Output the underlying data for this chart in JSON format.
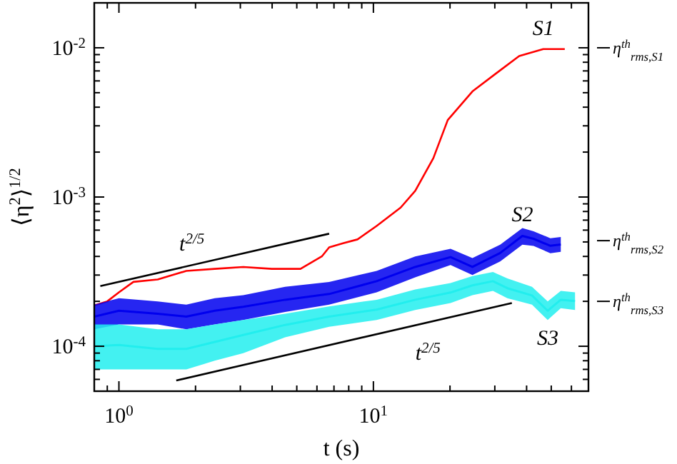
{
  "chart_data": {
    "type": "line",
    "xlabel": "t (s)",
    "ylabel": "⟨η$^{2}$⟩$^{1/2}$",
    "log": "xy",
    "grid": false,
    "marker": "none",
    "line_style": "solid",
    "xlim": [
      0.8,
      70
    ],
    "ylim": [
      5e-05,
      0.02
    ],
    "xticks": [
      {
        "value": 0.8,
        "label": null
      },
      {
        "value": 0.9,
        "label": null
      },
      {
        "value": 1,
        "label": "10$^{0}$"
      },
      {
        "value": 2,
        "label": null
      },
      {
        "value": 3,
        "label": null
      },
      {
        "value": 4,
        "label": null
      },
      {
        "value": 5,
        "label": null
      },
      {
        "value": 6,
        "label": null
      },
      {
        "value": 7,
        "label": null
      },
      {
        "value": 8,
        "label": null
      },
      {
        "value": 9,
        "label": null
      },
      {
        "value": 10,
        "label": "10$^{1}$"
      },
      {
        "value": 20,
        "label": null
      },
      {
        "value": 30,
        "label": null
      },
      {
        "value": 40,
        "label": null
      },
      {
        "value": 50,
        "label": null
      },
      {
        "value": 60,
        "label": null
      },
      {
        "value": 70,
        "label": null
      }
    ],
    "yticks": [
      {
        "value": 6e-05,
        "label": null
      },
      {
        "value": 7e-05,
        "label": null
      },
      {
        "value": 8e-05,
        "label": null
      },
      {
        "value": 9e-05,
        "label": null
      },
      {
        "value": 0.0001,
        "label": "10$^{-4}$"
      },
      {
        "value": 0.0002,
        "label": null
      },
      {
        "value": 0.0003,
        "label": null
      },
      {
        "value": 0.0004,
        "label": null
      },
      {
        "value": 0.0005,
        "label": null
      },
      {
        "value": 0.0006,
        "label": null
      },
      {
        "value": 0.0007,
        "label": null
      },
      {
        "value": 0.0008,
        "label": null
      },
      {
        "value": 0.0009,
        "label": null
      },
      {
        "value": 0.001,
        "label": "10$^{-3}$"
      },
      {
        "value": 0.002,
        "label": null
      },
      {
        "value": 0.003,
        "label": null
      },
      {
        "value": 0.004,
        "label": null
      },
      {
        "value": 0.005,
        "label": null
      },
      {
        "value": 0.006,
        "label": null
      },
      {
        "value": 0.007,
        "label": null
      },
      {
        "value": 0.008,
        "label": null
      },
      {
        "value": 0.009,
        "label": null
      },
      {
        "value": 0.01,
        "label": "10$^{-2}$"
      }
    ],
    "ref_lines": [
      {
        "axis": "y",
        "value": 0.01,
        "label": "η$^{th}$$_{rms,S1}$"
      },
      {
        "axis": "y",
        "value": 0.00051,
        "label": "η$^{th}$$_{rms,S2}$"
      },
      {
        "axis": "y",
        "value": 0.0002,
        "label": "η$^{th}$$_{rms,S3}$"
      }
    ],
    "series": [
      {
        "name": "S1",
        "color": "#ff0000",
        "x": [
          0.8,
          0.9,
          1.0,
          1.14,
          1.42,
          1.84,
          2.38,
          3.08,
          3.99,
          5.17,
          6.27,
          6.7,
          7.6,
          8.66,
          10.3,
          12.8,
          14.6,
          17.2,
          19.6,
          24.5,
          30.4,
          37.4,
          46.5,
          56.5
        ],
        "values": [
          0.000188,
          0.0002,
          0.00023,
          0.00027,
          0.00028,
          0.00032,
          0.00033,
          0.00034,
          0.00033,
          0.00033,
          0.0004,
          0.00046,
          0.00049,
          0.00052,
          0.00064,
          0.00085,
          0.0011,
          0.00182,
          0.00328,
          0.0051,
          0.00675,
          0.0088,
          0.0098,
          0.0098
        ]
      },
      {
        "name": "S2",
        "color": "#0000ee",
        "x": [
          0.8,
          1.0,
          1.42,
          1.84,
          2.38,
          3.08,
          4.5,
          6.7,
          10.3,
          14.6,
          20.1,
          24.5,
          31.5,
          38.5,
          42.6,
          49.6,
          54.5
        ],
        "values": [
          0.000158,
          0.000173,
          0.000165,
          0.000158,
          0.000173,
          0.000184,
          0.000205,
          0.000224,
          0.000273,
          0.00034,
          0.000396,
          0.00034,
          0.000422,
          0.000549,
          0.000525,
          0.000471,
          0.000481
        ],
        "lower": [
          0.00013,
          0.00014,
          0.00014,
          0.00013,
          0.00014,
          0.00015,
          0.00017,
          0.00019,
          0.00023,
          0.00029,
          0.00035,
          0.0003,
          0.00037,
          0.00048,
          0.00047,
          0.00042,
          0.00043
        ],
        "upper": [
          0.00019,
          0.00021,
          0.0002,
          0.00019,
          0.00021,
          0.00022,
          0.00025,
          0.00027,
          0.00032,
          0.0004,
          0.00045,
          0.00039,
          0.00048,
          0.00062,
          0.00059,
          0.00053,
          0.00054
        ]
      },
      {
        "name": "S3",
        "color": "#22eeee",
        "x": [
          0.8,
          1.0,
          1.42,
          1.84,
          2.38,
          3.08,
          4.5,
          6.7,
          10.3,
          14.6,
          20.1,
          24.5,
          29.5,
          33.6,
          42,
          48.4,
          54.5,
          62
        ],
        "values": [
          0.0001,
          0.000102,
          9.6e-05,
          9.6e-05,
          0.000107,
          0.000119,
          0.000139,
          0.000158,
          0.000176,
          0.000205,
          0.000229,
          0.000256,
          0.000273,
          0.000245,
          0.000219,
          0.000173,
          0.000205,
          0.000201
        ],
        "lower": [
          7e-05,
          7e-05,
          7e-05,
          7e-05,
          8e-05,
          9e-05,
          0.000115,
          0.000135,
          0.00015,
          0.000175,
          0.000195,
          0.00022,
          0.000235,
          0.00021,
          0.00019,
          0.00015,
          0.00018,
          0.000175
        ],
        "upper": [
          0.00014,
          0.00014,
          0.00013,
          0.00013,
          0.00014,
          0.00015,
          0.000165,
          0.000185,
          0.000205,
          0.00024,
          0.000265,
          0.000295,
          0.000315,
          0.000285,
          0.00025,
          0.0002,
          0.000235,
          0.00023
        ]
      },
      {
        "name": "t$^{2/5}$",
        "color": "#000000",
        "x": [
          0.845,
          6.7
        ],
        "values": [
          0.000253,
          0.000568
        ]
      },
      {
        "name": "t$^{2/5}$",
        "color": "#000000",
        "x": [
          1.68,
          35
        ],
        "values": [
          5.9e-05,
          0.000195
        ]
      }
    ]
  }
}
